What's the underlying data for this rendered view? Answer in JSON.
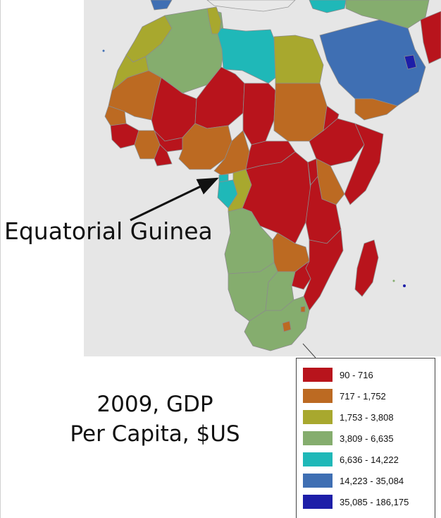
{
  "annotation": {
    "country_label": "Equatorial Guinea"
  },
  "caption": {
    "line1": "2009, GDP",
    "line2": "Per Capita, $US"
  },
  "legend": {
    "classes": [
      {
        "label": "90 - 716",
        "color": "#b8141c"
      },
      {
        "label": "717 - 1,752",
        "color": "#bc6a22"
      },
      {
        "label": "1,753 - 3,808",
        "color": "#a8a82e"
      },
      {
        "label": "3,809 - 6,635",
        "color": "#85ad6e"
      },
      {
        "label": "6,636 - 14,222",
        "color": "#1fb8b8"
      },
      {
        "label": "14,223 - 35,084",
        "color": "#3f6fb3"
      },
      {
        "label": "35,085 - 186,175",
        "color": "#1d1ea8"
      }
    ]
  },
  "map": {
    "background": "#e6e6e6",
    "borders": "#8c8c8c"
  }
}
